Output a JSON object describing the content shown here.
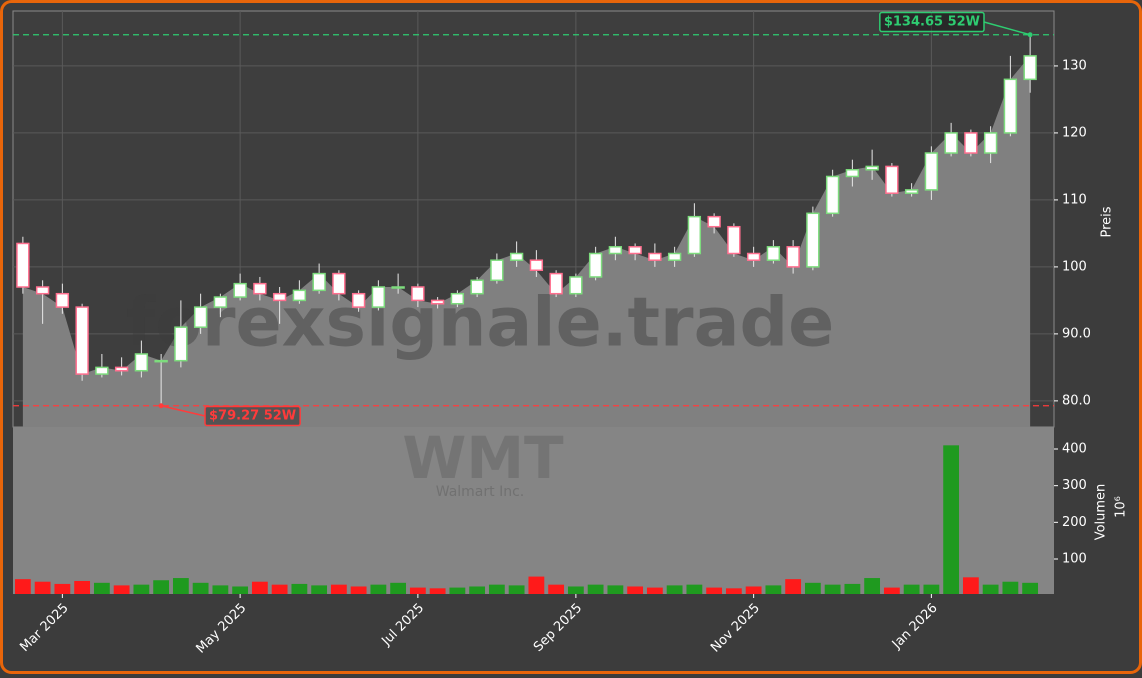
{
  "chart_data": {
    "type": "candlestick",
    "watermark": "forexsignale.trade",
    "symbol": "WMT",
    "company": "Walmart Inc.",
    "ylabel": "Preis",
    "ylim": [
      76.1,
      138.2
    ],
    "yticks": [
      {
        "value": 80,
        "label": "80.0"
      },
      {
        "value": 90,
        "label": "90.0"
      },
      100,
      110,
      120,
      130
    ],
    "grid": true,
    "up_color": "#7ddc7d",
    "down_color": "#ff6f8f",
    "area_color": "#808080",
    "categories": [
      null,
      null,
      "Mar 2025",
      null,
      null,
      null,
      null,
      null,
      null,
      null,
      null,
      "May 2025",
      null,
      null,
      null,
      null,
      null,
      null,
      null,
      null,
      "Jul 2025",
      null,
      null,
      null,
      null,
      null,
      null,
      null,
      "Sep 2025",
      null,
      null,
      null,
      null,
      null,
      null,
      null,
      null,
      "Nov 2025",
      null,
      null,
      null,
      null,
      null,
      null,
      null,
      null,
      "Jan 2026",
      null,
      null,
      null,
      null,
      null
    ],
    "open": [
      103.5,
      97,
      96,
      94,
      84,
      85,
      84.5,
      86,
      86,
      91,
      94,
      95.5,
      97.5,
      96,
      95,
      96.5,
      99,
      96,
      94,
      97,
      97,
      95,
      94.5,
      96,
      98,
      101,
      101,
      99,
      96,
      98.5,
      102,
      103,
      102,
      101,
      102,
      107.5,
      106,
      102,
      101,
      103,
      100,
      108,
      113.5,
      114.5,
      115,
      111,
      111.5,
      117,
      120,
      117,
      120,
      128
    ],
    "high": [
      104.5,
      98,
      97.5,
      94.5,
      87,
      86.5,
      89,
      87,
      95,
      96,
      96,
      99,
      98.5,
      97,
      98,
      100.5,
      99.5,
      96.5,
      98,
      99,
      97.5,
      95.5,
      96.5,
      98.5,
      102,
      103.8,
      102.5,
      99.5,
      99,
      103,
      104.5,
      103.5,
      103.5,
      103,
      109.5,
      108,
      106.5,
      103,
      104,
      104,
      109,
      114.5,
      116,
      117.5,
      115.5,
      112.5,
      118,
      121.5,
      120.5,
      121,
      131.5,
      134.65
    ],
    "low": [
      96,
      91.5,
      93,
      83,
      83.5,
      83.8,
      83.5,
      79.27,
      85,
      90,
      92.5,
      95,
      95,
      91.5,
      94.5,
      96,
      95,
      93.3,
      93.5,
      96,
      94,
      93.8,
      94,
      95.5,
      97.5,
      100,
      98.5,
      95.5,
      95.5,
      98,
      101,
      101,
      100,
      100,
      101.5,
      105,
      101.5,
      100,
      100.5,
      99,
      99.5,
      107.5,
      112,
      113,
      110.5,
      110.5,
      110,
      116.5,
      116.5,
      115.5,
      119.5,
      126
    ],
    "close": [
      97,
      96,
      94,
      84,
      85,
      84.5,
      87,
      86,
      91,
      94,
      95.5,
      97.5,
      96,
      95,
      96.5,
      99,
      96,
      94,
      97,
      97,
      95,
      94.5,
      96,
      98,
      101,
      102,
      99.5,
      96,
      98.5,
      102,
      103,
      102,
      101,
      102,
      107.5,
      106,
      102,
      101,
      103,
      100,
      108,
      113.5,
      114.5,
      115,
      111,
      111.5,
      117,
      120,
      117,
      120,
      128,
      131.5
    ],
    "high_marker": {
      "value": 134.65,
      "label": "$134.65 52W",
      "color": "#2ecc71"
    },
    "low_marker": {
      "value": 79.27,
      "label": "$79.27 52W",
      "color": "#ff3b3b"
    },
    "volume": {
      "ylabel": "Volumen",
      "unit": "10⁶",
      "ylim": [
        4.5,
        460
      ],
      "yticks": [
        100,
        200,
        300,
        400
      ],
      "up_color": "#1f9a1f",
      "down_color": "#ff1a1a",
      "values": [
        45,
        38,
        32,
        40,
        35,
        28,
        30,
        42,
        48,
        35,
        28,
        25,
        38,
        30,
        32,
        28,
        30,
        25,
        30,
        35,
        22,
        20,
        22,
        25,
        30,
        28,
        52,
        30,
        25,
        30,
        28,
        25,
        22,
        28,
        30,
        22,
        20,
        25,
        28,
        45,
        35,
        30,
        32,
        48,
        22,
        30,
        30,
        410,
        50,
        30,
        38,
        35
      ]
    }
  }
}
